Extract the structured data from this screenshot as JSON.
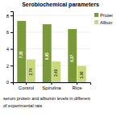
{
  "chart_data": {
    "type": "bar",
    "title": "Serobiochemical parameters",
    "categories": [
      "Control",
      "Spirulina",
      "Rice"
    ],
    "series": [
      {
        "name": "Protei",
        "color": "#7a9a3a",
        "values": [
          7.35,
          6.95,
          6.37
        ]
      },
      {
        "name": "Albun",
        "color": "#c8d87a",
        "values": [
          2.74,
          2.49,
          1.96
        ]
      }
    ],
    "ylim": [
      0,
      8.5
    ],
    "yticks": [
      0,
      2,
      4,
      6,
      8
    ],
    "grid": true,
    "legend": "right",
    "data_labels": true,
    "annotations": [
      "serum protein and albumin levels in different",
      "of experimental rats"
    ]
  }
}
